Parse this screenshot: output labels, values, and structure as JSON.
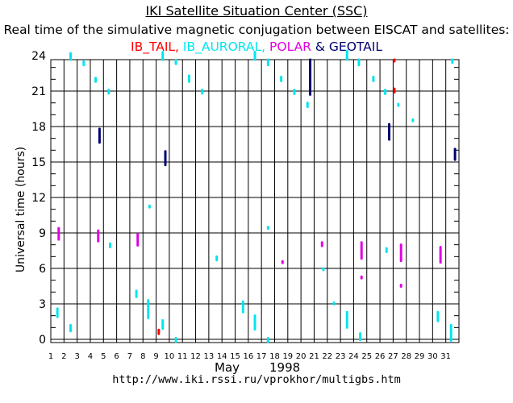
{
  "header": {
    "title": "IKI Satellite Situation Center (SSC)",
    "subtitle": "Real time of the simulative magnetic conjugation between EISCAT and satellites:"
  },
  "legend": [
    {
      "label": "IB_TAIL,",
      "color": "#ff0000"
    },
    {
      "label": "IB_AURORAL,",
      "color": "#00e5ee"
    },
    {
      "label": "POLAR",
      "color": "#e000e0"
    },
    {
      "label": "& GEOTAIL",
      "color": "#000070"
    }
  ],
  "footer": {
    "month": "May",
    "year": "1998",
    "url": "http://www.iki.rssi.ru/vprokhor/multigbs.htm"
  },
  "chart_data": {
    "type": "scatter",
    "title": "IKI Satellite Situation Center (SSC)",
    "ylabel": "Universal time (hours)",
    "xlabel": "May 1998",
    "xlim": [
      1,
      32
    ],
    "ylim": [
      0,
      24
    ],
    "x_ticks": [
      1,
      2,
      3,
      4,
      5,
      6,
      7,
      8,
      9,
      10,
      11,
      12,
      13,
      14,
      15,
      16,
      17,
      18,
      19,
      20,
      21,
      22,
      23,
      24,
      25,
      26,
      27,
      28,
      29,
      30,
      31
    ],
    "y_ticks": [
      0,
      3,
      6,
      9,
      12,
      15,
      18,
      21,
      24
    ],
    "grid": true,
    "series": [
      {
        "name": "IB_TAIL",
        "color": "#ff0000",
        "segments": [
          [
            9.2,
            0.4,
            0.8
          ],
          [
            27.1,
            23.5,
            24.4
          ],
          [
            27.1,
            20.9,
            21.2
          ]
        ]
      },
      {
        "name": "IB_AURORAL",
        "color": "#00e5ee",
        "segments": [
          [
            1.5,
            1.9,
            2.6
          ],
          [
            2.5,
            24.2,
            24.6
          ],
          [
            2.5,
            0.7,
            1.2
          ],
          [
            3.5,
            23.2,
            23.5
          ],
          [
            4.4,
            21.8,
            22.1
          ],
          [
            5.4,
            20.8,
            21.1
          ],
          [
            5.5,
            7.8,
            8.1
          ],
          [
            7.5,
            3.6,
            4.1
          ],
          [
            8.4,
            1.8,
            3.3
          ],
          [
            8.5,
            11.1,
            11.3
          ],
          [
            9.5,
            24.3,
            24.6
          ],
          [
            9.5,
            0.9,
            1.6
          ],
          [
            10.5,
            23.3,
            23.6
          ],
          [
            10.5,
            -0.2,
            0.1
          ],
          [
            11.5,
            21.8,
            22.3
          ],
          [
            12.5,
            20.8,
            21.1
          ],
          [
            13.6,
            6.7,
            7.0
          ],
          [
            15.6,
            2.3,
            3.2
          ],
          [
            16.5,
            24.3,
            24.6
          ],
          [
            16.5,
            0.8,
            2.0
          ],
          [
            17.5,
            23.2,
            23.8
          ],
          [
            17.5,
            9.3,
            9.5
          ],
          [
            17.5,
            -0.2,
            0.1
          ],
          [
            18.5,
            21.8,
            22.2
          ],
          [
            19.5,
            20.7,
            21.1
          ],
          [
            20.5,
            19.6,
            20.0
          ],
          [
            21.7,
            5.8,
            6.0
          ],
          [
            22.5,
            2.9,
            3.1
          ],
          [
            23.5,
            24.4,
            24.6
          ],
          [
            23.5,
            1.0,
            2.3
          ],
          [
            24.4,
            23.2,
            23.8
          ],
          [
            24.5,
            -0.1,
            0.5
          ],
          [
            25.5,
            21.8,
            22.2
          ],
          [
            26.4,
            20.7,
            21.1
          ],
          [
            26.5,
            7.4,
            7.7
          ],
          [
            27.4,
            19.7,
            19.9
          ],
          [
            28.5,
            18.4,
            18.6
          ],
          [
            30.4,
            1.5,
            2.3
          ],
          [
            31.5,
            23.4,
            23.9
          ],
          [
            31.4,
            -0.1,
            1.2
          ]
        ]
      },
      {
        "name": "POLAR",
        "color": "#e000e0",
        "segments": [
          [
            1.6,
            8.4,
            9.4
          ],
          [
            4.6,
            8.3,
            9.2
          ],
          [
            7.6,
            7.9,
            8.9
          ],
          [
            18.6,
            6.4,
            6.6
          ],
          [
            21.6,
            7.9,
            8.2
          ],
          [
            24.6,
            6.8,
            8.2
          ],
          [
            24.6,
            5.1,
            5.3
          ],
          [
            27.6,
            6.6,
            8.0
          ],
          [
            27.6,
            4.4,
            4.6
          ],
          [
            30.6,
            6.5,
            7.8
          ]
        ]
      },
      {
        "name": "GEOTAIL",
        "color": "#000070",
        "segments": [
          [
            4.7,
            16.6,
            17.8
          ],
          [
            9.7,
            14.7,
            15.9
          ],
          [
            20.7,
            20.7,
            23.9
          ],
          [
            26.7,
            16.9,
            18.2
          ],
          [
            31.7,
            15.2,
            16.1
          ]
        ]
      }
    ]
  }
}
